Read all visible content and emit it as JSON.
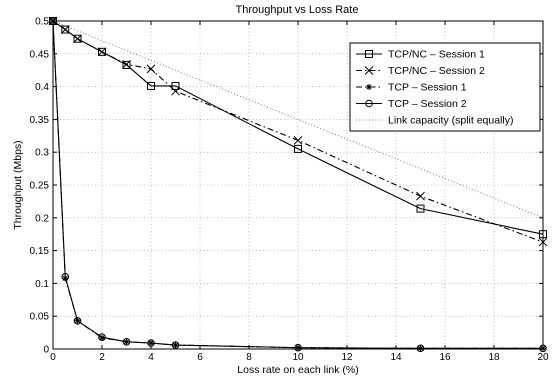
{
  "chart_data": {
    "type": "line",
    "title": "Throughput vs Loss Rate",
    "xlabel": "Loss rate on each link (%)",
    "ylabel": "Throughput (Mbps)",
    "xlim": [
      0,
      20
    ],
    "ylim": [
      0,
      0.5
    ],
    "xticks": [
      0,
      2,
      4,
      6,
      8,
      10,
      12,
      14,
      16,
      18,
      20
    ],
    "yticks": [
      0,
      0.05,
      0.1,
      0.15,
      0.2,
      0.25,
      0.3,
      0.35,
      0.4,
      0.45,
      0.5
    ],
    "grid": true,
    "legend_position": "top-right",
    "series": [
      {
        "name": "TCP/NC – Session 1",
        "line": "solid",
        "marker": "square",
        "x": [
          0,
          0.5,
          1,
          2,
          3,
          4,
          5,
          10,
          15,
          20
        ],
        "y": [
          0.5,
          0.487,
          0.473,
          0.453,
          0.433,
          0.401,
          0.401,
          0.305,
          0.214,
          0.175
        ]
      },
      {
        "name": "TCP/NC – Session 2",
        "line": "dashdot",
        "marker": "x",
        "x": [
          0,
          0.5,
          1,
          2,
          3,
          4,
          5,
          10,
          15,
          20
        ],
        "y": [
          0.5,
          0.487,
          0.473,
          0.453,
          0.434,
          0.427,
          0.393,
          0.318,
          0.233,
          0.163
        ]
      },
      {
        "name": "TCP – Session 1",
        "line": "dashdot",
        "marker": "star",
        "x": [
          0,
          0.5,
          1,
          2,
          3,
          4,
          5,
          10,
          15,
          20
        ],
        "y": [
          0.5,
          0.108,
          0.043,
          0.017,
          0.011,
          0.009,
          0.006,
          0.002,
          0.001,
          0.001
        ]
      },
      {
        "name": "TCP – Session 2",
        "line": "solid",
        "marker": "circle",
        "x": [
          0,
          0.5,
          1,
          2,
          3,
          4,
          5,
          10,
          15,
          20
        ],
        "y": [
          0.5,
          0.11,
          0.043,
          0.018,
          0.011,
          0.009,
          0.006,
          0.002,
          0.001,
          0.001
        ]
      },
      {
        "name": "Link capacity (split equally)",
        "line": "dotted",
        "marker": "none",
        "x": [
          0,
          20
        ],
        "y": [
          0.5,
          0.2
        ]
      }
    ]
  }
}
